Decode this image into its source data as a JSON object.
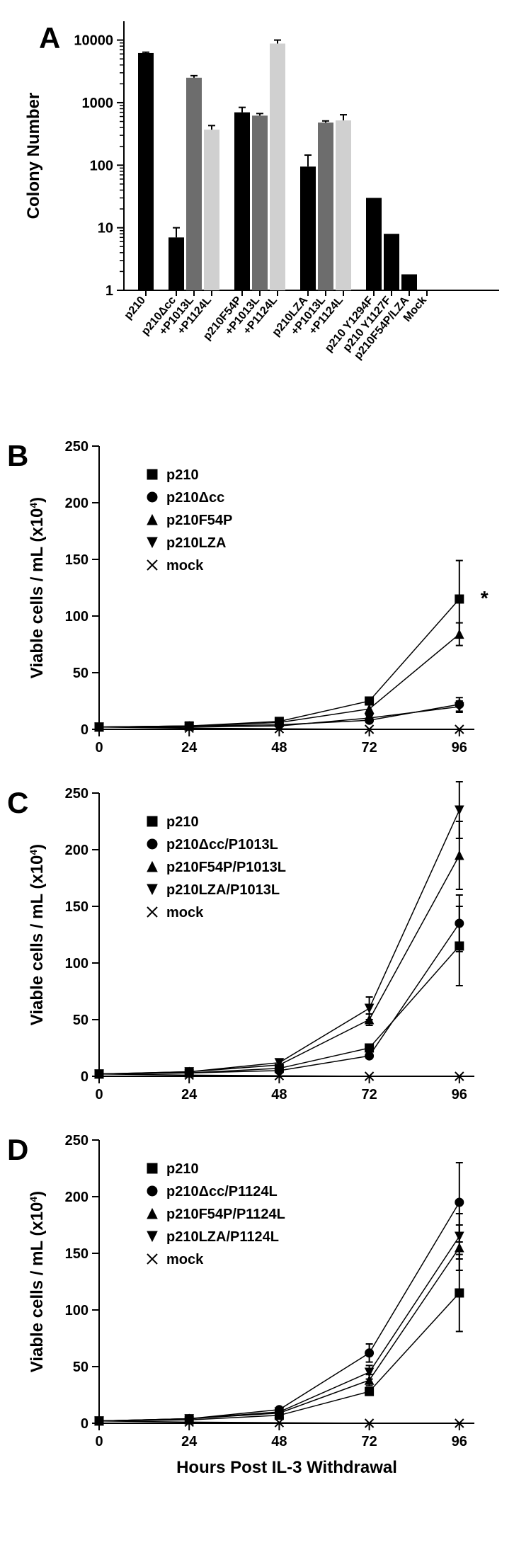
{
  "panelA": {
    "label": "A",
    "type": "bar",
    "yscale": "log",
    "ylabel": "Colony Number",
    "ylim": [
      1,
      20000
    ],
    "yticks": [
      1,
      10,
      100,
      1000,
      10000
    ],
    "ytick_labels": [
      "1",
      "10",
      "100",
      "1000",
      "10000"
    ],
    "categories": [
      "p210",
      "p210Δcc",
      "+P1013L",
      "+P1124L",
      "p210F54P",
      "+P1013L",
      "+P1124L",
      "p210LZA",
      "+P1013L",
      "+P1124L",
      "p210 Y1294F",
      "p210 Y1127F",
      "p210F54P/LZA",
      "Mock"
    ],
    "groups": [
      {
        "start": 0,
        "count": 1
      },
      {
        "start": 1,
        "count": 3
      },
      {
        "start": 4,
        "count": 3
      },
      {
        "start": 7,
        "count": 3
      },
      {
        "start": 10,
        "count": 4
      }
    ],
    "bars": [
      {
        "val": 6200,
        "err": 200,
        "color": "black"
      },
      {
        "val": 7,
        "err": 3,
        "color": "black"
      },
      {
        "val": 2500,
        "err": 200,
        "color": "dark"
      },
      {
        "val": 370,
        "err": 60,
        "color": "light"
      },
      {
        "val": 700,
        "err": 140,
        "color": "black"
      },
      {
        "val": 620,
        "err": 50,
        "color": "dark"
      },
      {
        "val": 8800,
        "err": 1200,
        "color": "light"
      },
      {
        "val": 95,
        "err": 50,
        "color": "black"
      },
      {
        "val": 480,
        "err": 30,
        "color": "dark"
      },
      {
        "val": 520,
        "err": 120,
        "color": "light"
      },
      {
        "val": 30,
        "err": 0,
        "color": "black"
      },
      {
        "val": 8,
        "err": 0,
        "color": "black"
      },
      {
        "val": 1.8,
        "err": 0,
        "color": "black"
      },
      {
        "val": 1,
        "err": 0,
        "color": "black"
      }
    ],
    "title_fontsize": 24,
    "tick_fontsize": 20,
    "background_color": "#ffffff"
  },
  "panelB": {
    "label": "B",
    "type": "line",
    "ylabel": "Viable cells / mL (x10⁴)",
    "xlim": [
      0,
      100
    ],
    "ylim": [
      0,
      250
    ],
    "xticks": [
      0,
      24,
      48,
      72,
      96
    ],
    "yticks": [
      0,
      50,
      100,
      150,
      200,
      250
    ],
    "annotation": "*",
    "series": [
      {
        "name": "p210",
        "marker": "square",
        "x": [
          0,
          24,
          48,
          72,
          96
        ],
        "y": [
          2,
          3,
          7,
          25,
          115
        ],
        "err": [
          0,
          0,
          0,
          0,
          34
        ]
      },
      {
        "name": "p210Δcc",
        "marker": "circle",
        "x": [
          0,
          24,
          48,
          72,
          96
        ],
        "y": [
          2,
          3,
          4,
          8,
          22
        ],
        "err": [
          0,
          0,
          0,
          0,
          6
        ]
      },
      {
        "name": "p210F54P",
        "marker": "tri-up",
        "x": [
          0,
          24,
          48,
          72,
          96
        ],
        "y": [
          2,
          3,
          6,
          18,
          84
        ],
        "err": [
          0,
          0,
          0,
          0,
          10
        ]
      },
      {
        "name": "p210LZA",
        "marker": "tri-dn",
        "x": [
          0,
          24,
          48,
          72,
          96
        ],
        "y": [
          2,
          2,
          3,
          10,
          20
        ],
        "err": [
          0,
          0,
          0,
          0,
          5
        ]
      },
      {
        "name": "mock",
        "marker": "x",
        "x": [
          0,
          24,
          48,
          72,
          96
        ],
        "y": [
          2,
          1,
          0.5,
          0,
          0
        ],
        "err": [
          0,
          0,
          0,
          0,
          0
        ]
      }
    ]
  },
  "panelC": {
    "label": "C",
    "type": "line",
    "ylabel": "Viable cells / mL (x10⁴)",
    "xlim": [
      0,
      100
    ],
    "ylim": [
      0,
      250
    ],
    "xticks": [
      0,
      24,
      48,
      72,
      96
    ],
    "yticks": [
      0,
      50,
      100,
      150,
      200,
      250
    ],
    "series": [
      {
        "name": "p210",
        "marker": "square",
        "x": [
          0,
          24,
          48,
          72,
          96
        ],
        "y": [
          2,
          3,
          7,
          25,
          115
        ],
        "err": [
          0,
          0,
          0,
          0,
          35
        ]
      },
      {
        "name": "p210Δcc/P1013L",
        "marker": "circle",
        "x": [
          0,
          24,
          48,
          72,
          96
        ],
        "y": [
          2,
          3,
          5,
          18,
          135
        ],
        "err": [
          0,
          0,
          0,
          0,
          25
        ]
      },
      {
        "name": "p210F54P/P1013L",
        "marker": "tri-up",
        "x": [
          0,
          24,
          48,
          72,
          96
        ],
        "y": [
          2,
          4,
          10,
          50,
          195
        ],
        "err": [
          0,
          0,
          0,
          5,
          30
        ]
      },
      {
        "name": "p210LZA/P1013L",
        "marker": "tri-dn",
        "x": [
          0,
          24,
          48,
          72,
          96
        ],
        "y": [
          2,
          4,
          12,
          60,
          235
        ],
        "err": [
          0,
          0,
          0,
          10,
          25
        ]
      },
      {
        "name": "mock",
        "marker": "x",
        "x": [
          0,
          24,
          48,
          72,
          96
        ],
        "y": [
          2,
          1,
          0.5,
          0,
          0
        ],
        "err": [
          0,
          0,
          0,
          0,
          0
        ]
      }
    ]
  },
  "panelD": {
    "label": "D",
    "type": "line",
    "ylabel": "Viable cells / mL (x10⁴)",
    "xlabel": "Hours Post IL-3 Withdrawal",
    "xlim": [
      0,
      100
    ],
    "ylim": [
      0,
      250
    ],
    "xticks": [
      0,
      24,
      48,
      72,
      96
    ],
    "yticks": [
      0,
      50,
      100,
      150,
      200,
      250
    ],
    "series": [
      {
        "name": "p210",
        "marker": "square",
        "x": [
          0,
          24,
          48,
          72,
          96
        ],
        "y": [
          2,
          3,
          7,
          28,
          115
        ],
        "err": [
          0,
          0,
          0,
          0,
          34
        ]
      },
      {
        "name": "p210Δcc/P1124L",
        "marker": "circle",
        "x": [
          0,
          24,
          48,
          72,
          96
        ],
        "y": [
          2,
          4,
          12,
          62,
          195
        ],
        "err": [
          0,
          0,
          0,
          8,
          35
        ]
      },
      {
        "name": "p210F54P/P1124L",
        "marker": "tri-up",
        "x": [
          0,
          24,
          48,
          72,
          96
        ],
        "y": [
          2,
          4,
          9,
          38,
          155
        ],
        "err": [
          0,
          0,
          0,
          5,
          20
        ]
      },
      {
        "name": "p210LZA/P1124L",
        "marker": "tri-dn",
        "x": [
          0,
          24,
          48,
          72,
          96
        ],
        "y": [
          2,
          4,
          10,
          45,
          165
        ],
        "err": [
          0,
          0,
          0,
          6,
          20
        ]
      },
      {
        "name": "mock",
        "marker": "x",
        "x": [
          0,
          24,
          48,
          72,
          96
        ],
        "y": [
          2,
          1,
          0.5,
          0,
          0
        ],
        "err": [
          0,
          0,
          0,
          0,
          0
        ]
      }
    ]
  }
}
